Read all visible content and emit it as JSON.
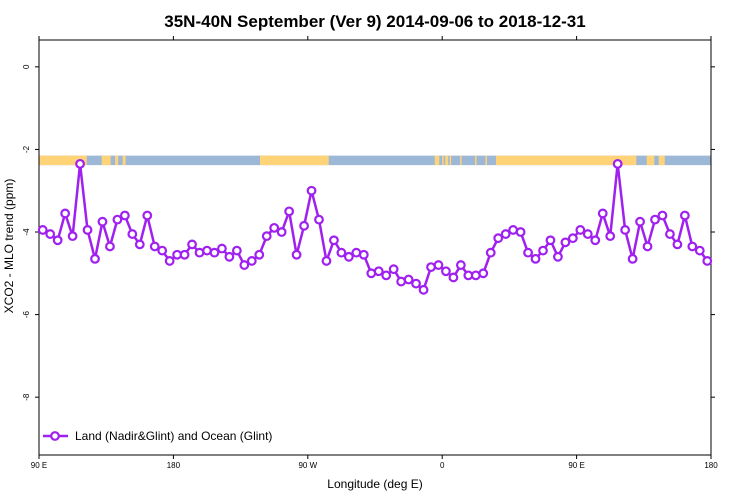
{
  "chart_data": {
    "type": "line",
    "title": "35N-40N September (Ver 9)   2014-09-06 to 2018-12-31",
    "xlabel": "Longitude (deg E)",
    "ylabel": "XCO2 - MLO trend (ppm)",
    "xlim": [
      90,
      540
    ],
    "ylim": [
      -9.4,
      0.65
    ],
    "x_ticks": [
      {
        "value": 90,
        "label": "90 E"
      },
      {
        "value": 180,
        "label": "180"
      },
      {
        "value": 270,
        "label": "90 W"
      },
      {
        "value": 360,
        "label": "0"
      },
      {
        "value": 450,
        "label": "90 E"
      },
      {
        "value": 540,
        "label": "180"
      }
    ],
    "y_ticks": [
      {
        "value": 0,
        "label": "0"
      },
      {
        "value": -2,
        "label": "-2"
      },
      {
        "value": -4,
        "label": "-4"
      },
      {
        "value": -6,
        "label": "-6"
      },
      {
        "value": -8,
        "label": "-8"
      }
    ],
    "legend": {
      "placement": "bottom-left"
    },
    "colors": {
      "series": "#a020f0",
      "land": "#ffd479",
      "ocean": "#9db7d6"
    },
    "surface_band": {
      "y_top": -2.15,
      "y_bottom": -2.38,
      "land_segments": [
        [
          90,
          122
        ],
        [
          132,
          138
        ],
        [
          141,
          143
        ],
        [
          146,
          148
        ],
        [
          238,
          284
        ],
        [
          355,
          358
        ],
        [
          360,
          361
        ],
        [
          362,
          364
        ],
        [
          365,
          366
        ],
        [
          372,
          373
        ],
        [
          382,
          383
        ],
        [
          389,
          390
        ],
        [
          396,
          490
        ],
        [
          497,
          502
        ],
        [
          505,
          509
        ]
      ]
    },
    "series": [
      {
        "name": "Land (Nadir&Glint) and Ocean (Glint)",
        "x": [
          92.5,
          97.5,
          102.5,
          107.5,
          112.5,
          117.5,
          122.5,
          127.5,
          132.5,
          137.5,
          142.5,
          147.5,
          152.5,
          157.5,
          162.5,
          167.5,
          172.5,
          177.5,
          182.5,
          187.5,
          192.5,
          197.5,
          202.5,
          207.5,
          212.5,
          217.5,
          222.5,
          227.5,
          232.5,
          237.5,
          242.5,
          247.5,
          252.5,
          257.5,
          262.5,
          267.5,
          272.5,
          277.5,
          282.5,
          287.5,
          292.5,
          297.5,
          302.5,
          307.5,
          312.5,
          317.5,
          322.5,
          327.5,
          332.5,
          337.5,
          342.5,
          347.5,
          352.5,
          357.5,
          362.5,
          367.5,
          372.5,
          377.5,
          382.5,
          387.5,
          392.5,
          397.5,
          402.5,
          407.5,
          412.5,
          417.5,
          422.5,
          427.5,
          432.5,
          437.5,
          442.5,
          447.5,
          452.5,
          457.5,
          462.5,
          467.5,
          472.5,
          477.5,
          482.5,
          487.5,
          492.5,
          497.5,
          502.5,
          507.5,
          512.5,
          517.5,
          522.5,
          527.5,
          532.5,
          537.5
        ],
        "values": [
          -3.95,
          -4.05,
          -4.2,
          -3.55,
          -4.1,
          -2.35,
          -3.95,
          -4.65,
          -3.75,
          -4.35,
          -3.7,
          -3.6,
          -4.05,
          -4.3,
          -3.6,
          -4.35,
          -4.45,
          -4.7,
          -4.55,
          -4.55,
          -4.3,
          -4.5,
          -4.45,
          -4.5,
          -4.4,
          -4.6,
          -4.45,
          -4.8,
          -4.7,
          -4.55,
          -4.1,
          -3.9,
          -4.0,
          -3.5,
          -4.55,
          -3.85,
          -3.0,
          -3.7,
          -4.7,
          -4.2,
          -4.5,
          -4.6,
          -4.5,
          -4.55,
          -5.0,
          -4.95,
          -5.05,
          -4.9,
          -5.2,
          -5.15,
          -5.25,
          -5.4,
          -4.85,
          -4.8,
          -4.95,
          -5.1,
          -4.8,
          -5.05,
          -5.05,
          -5.0,
          -4.5,
          -4.15,
          -4.05,
          -3.95,
          -4.0,
          -4.5,
          -4.65,
          -4.45,
          -4.2,
          -4.6,
          -4.25,
          -4.15,
          -3.95,
          -4.05,
          -4.2,
          -3.55,
          -4.1,
          -2.35,
          -3.95,
          -4.65,
          -3.75,
          -4.35,
          -3.7,
          -3.6,
          -4.05,
          -4.3,
          -3.6,
          -4.35,
          -4.45,
          -4.7
        ]
      }
    ]
  }
}
